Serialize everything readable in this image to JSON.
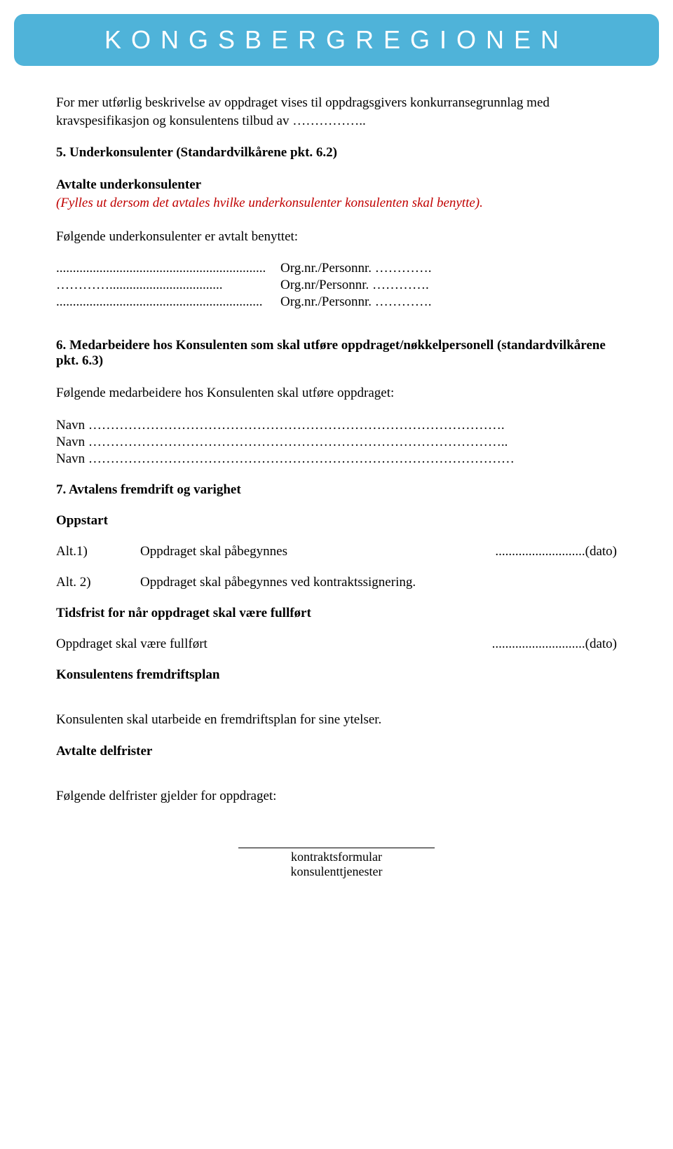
{
  "header": {
    "banner_text": "KONGSBERGREGIONEN",
    "banner_bg": "#4fb3d9",
    "banner_color": "#ffffff"
  },
  "intro": {
    "text": "For mer utførlig beskrivelse av oppdraget vises til oppdragsgivers konkurransegrunnlag med kravspesifikasjon og konsulentens tilbud av …………….."
  },
  "section5": {
    "title": "5.    Underkonsulenter (Standardvilkårene pkt. 6.2)",
    "subtitle": "Avtalte underkonsulenter",
    "note": "(Fylles ut dersom det avtales hvilke underkonsulenter konsulenten skal benytte).",
    "listing_intro": "Følgende underkonsulenter er avtalt benyttet:",
    "rows": [
      {
        "dots": "...............................................................",
        "label": "Org.nr./Personnr. …………."
      },
      {
        "dots": "…………..................................",
        "label": "Org.nr/Personnr. …………."
      },
      {
        "dots": "..............................................................",
        "label": "Org.nr./Personnr. …………."
      }
    ]
  },
  "section6": {
    "title": "6.    Medarbeidere hos Konsulenten som skal utføre oppdraget/nøkkelpersonell (standardvilkårene pkt. 6.3)",
    "listing_intro": "Følgende medarbeidere hos Konsulenten skal utføre oppdraget:",
    "rows": [
      "Navn   ………………………………………………………………………………….",
      "Navn   …………………………………………………………………………………..",
      "Navn   ……………………………………………………………………………………"
    ]
  },
  "section7": {
    "title": "7.     Avtalens fremdrift og varighet",
    "oppstart": "Oppstart",
    "alt1_label": "Alt.1)",
    "alt1_text": "Oppdraget skal påbegynnes",
    "alt1_dato": "...........................(dato)",
    "alt2_label": "Alt. 2)",
    "alt2_text": "Oppdraget skal påbegynnes ved kontraktssignering.",
    "tidsfrist_title": "Tidsfrist for når oppdraget skal være fullført",
    "fullfort_text": "Oppdraget skal være fullført",
    "fullfort_dato": "............................(dato)",
    "fremdriftsplan_title": "Konsulentens fremdriftsplan",
    "fremdriftsplan_text": "Konsulenten skal utarbeide en fremdriftsplan for sine ytelser.",
    "delfrister_title": "Avtalte delfrister",
    "delfrister_text": "Følgende delfrister gjelder for oppdraget:"
  },
  "footer": {
    "line1": "kontraktsformular",
    "line2": "konsulenttjenester"
  }
}
